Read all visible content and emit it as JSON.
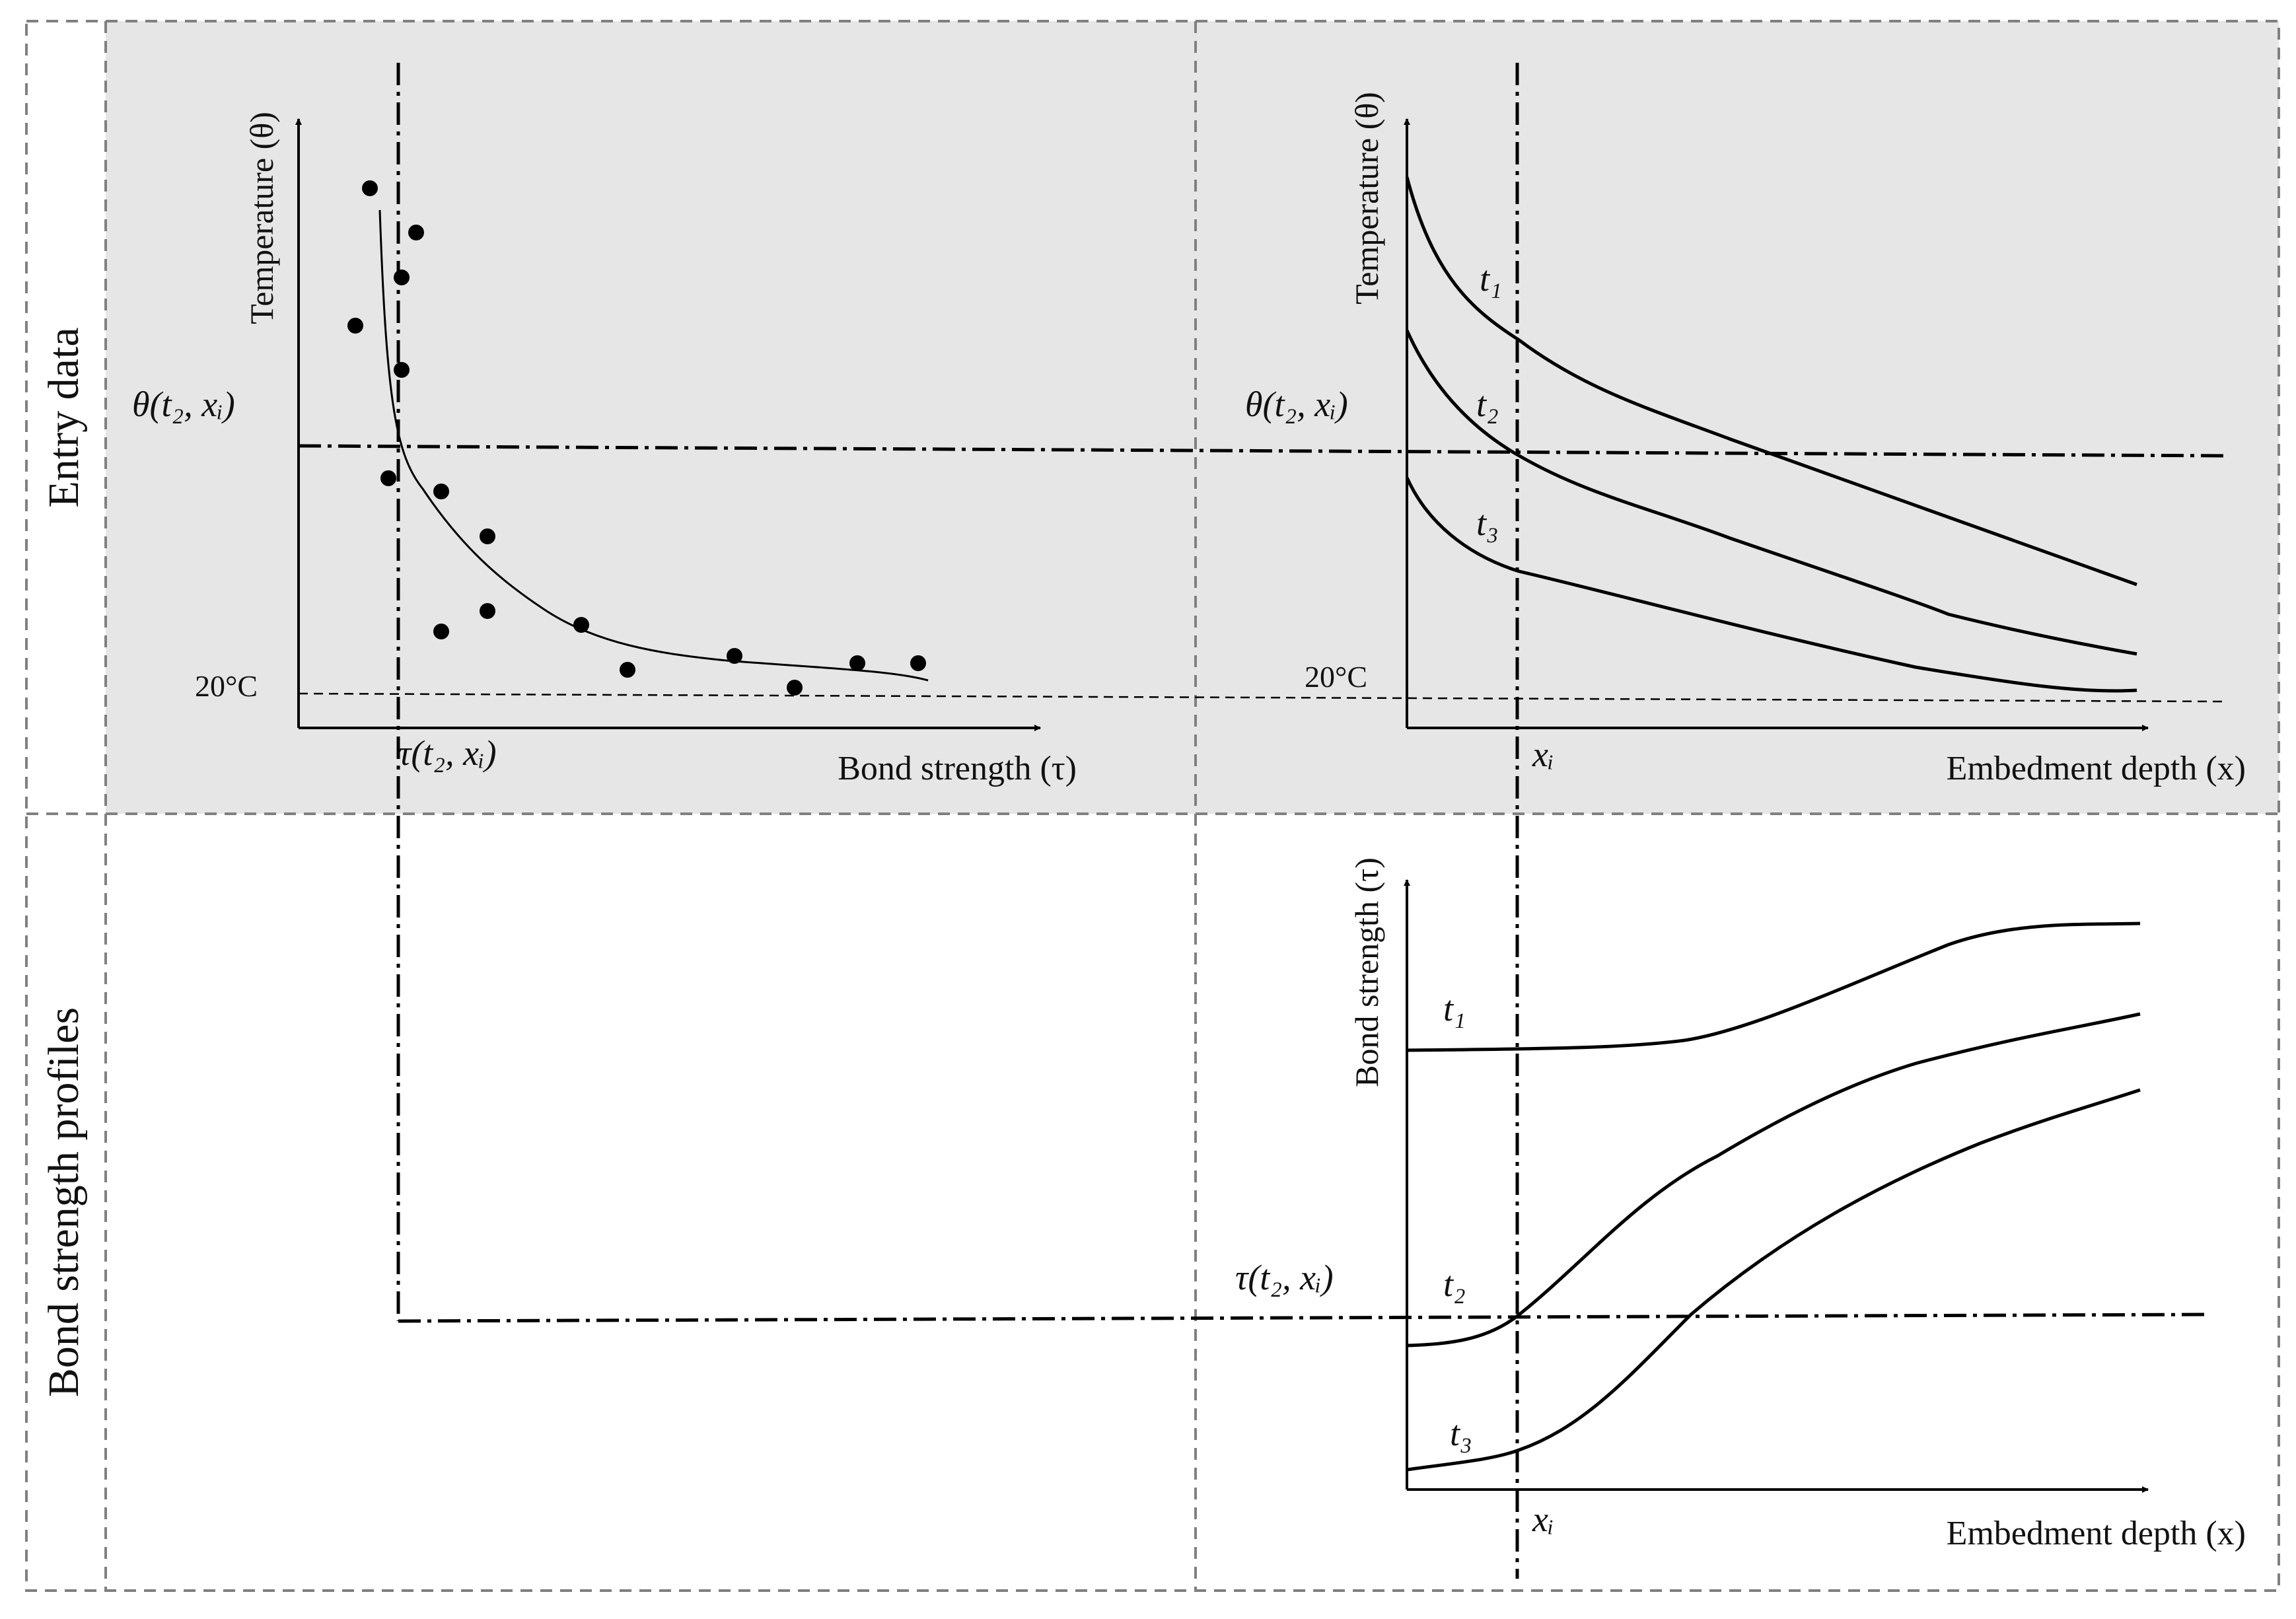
{
  "rows": {
    "top_label": "Entry data",
    "bottom_label": "Bond strength profiles"
  },
  "panel_a": {
    "y_axis": "Temperature (θ)",
    "x_axis": "Bond strength (τ)",
    "theta_label": "θ(t₂, xᵢ)",
    "ambient_label": "20°C",
    "tau_label": "τ(t₂, xᵢ)"
  },
  "panel_b": {
    "y_axis": "Temperature (θ)",
    "x_axis": "Embedment depth (x)",
    "theta_label": "θ(t₂, xᵢ)",
    "ambient_label": "20°C",
    "xi_label": "xᵢ",
    "curves": [
      "t₁",
      "t₂",
      "t₃"
    ]
  },
  "panel_c": {
    "y_axis": "Bond strength (τ)",
    "x_axis": "Embedment depth (x)",
    "tau_label": "τ(t₂, xᵢ)",
    "xi_label": "xᵢ",
    "curves": [
      "t₁",
      "t₂",
      "t₃"
    ]
  },
  "colors": {
    "top_band": "#e6e6e6",
    "frame": "#808080",
    "ink": "#000000"
  }
}
